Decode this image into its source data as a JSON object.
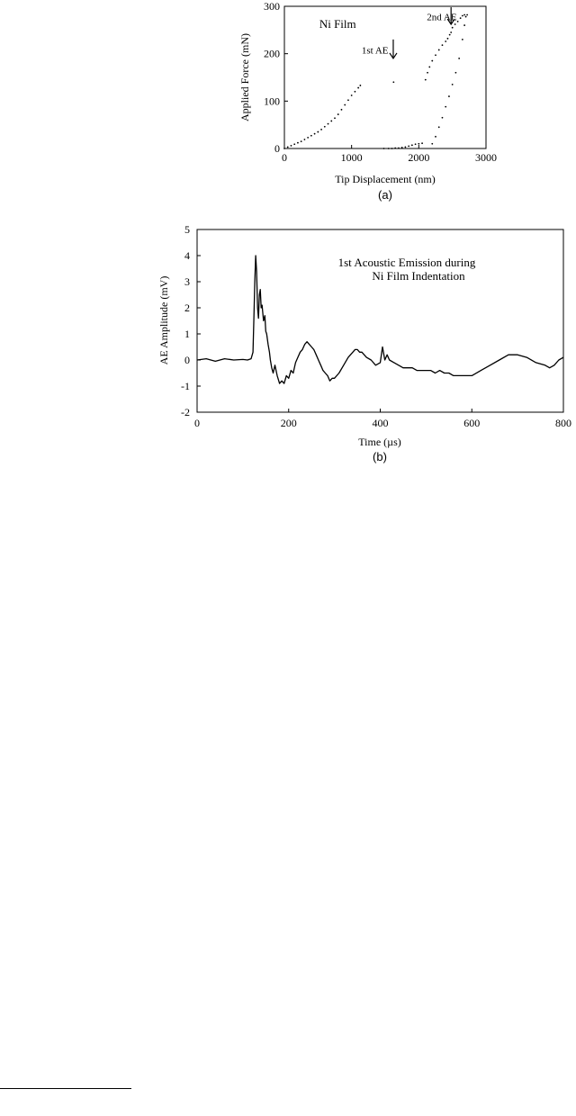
{
  "chart_data": [
    {
      "type": "scatter",
      "xlabel": "Tip Displacement (nm)",
      "ylabel": "Applied Force (mN)",
      "xlim": [
        0,
        3000
      ],
      "ylim": [
        0,
        300
      ],
      "xticks": [
        "0",
        "1000",
        "2000",
        "3000"
      ],
      "yticks": [
        "0",
        "100",
        "200",
        "300"
      ],
      "caption": "(a)",
      "grid": false,
      "annotations": [
        {
          "text": "Ni Film",
          "x": 520,
          "y": 262
        },
        {
          "text": "1st AE",
          "x": 1150,
          "y": 208,
          "arrow_x": 1620,
          "arrow_top": 230,
          "arrow_bottom": 190
        },
        {
          "text": "2nd AE",
          "x": 2120,
          "y": 278,
          "arrow_x": 2480,
          "arrow_top": 298,
          "arrow_bottom": 262
        }
      ],
      "series": [
        {
          "values": [
            [
              0,
              0
            ],
            [
              50,
              3
            ],
            [
              100,
              6
            ],
            [
              150,
              9
            ],
            [
              200,
              12
            ],
            [
              250,
              15
            ],
            [
              300,
              19
            ],
            [
              350,
              23
            ],
            [
              400,
              27
            ],
            [
              450,
              31
            ],
            [
              500,
              35
            ],
            [
              550,
              40
            ],
            [
              600,
              46
            ],
            [
              650,
              52
            ],
            [
              700,
              58
            ],
            [
              750,
              64
            ],
            [
              800,
              72
            ],
            [
              850,
              82
            ],
            [
              900,
              92
            ],
            [
              950,
              102
            ],
            [
              1000,
              112
            ],
            [
              1050,
              120
            ],
            [
              1100,
              128
            ],
            [
              1130,
              133
            ]
          ]
        },
        {
          "values": [
            [
              1625,
              140
            ]
          ]
        },
        {
          "values": [
            [
              1480,
              0
            ],
            [
              1550,
              0
            ],
            [
              1600,
              0
            ],
            [
              1650,
              1
            ],
            [
              1700,
              1
            ],
            [
              1750,
              2
            ],
            [
              1800,
              3
            ],
            [
              1850,
              5
            ],
            [
              1900,
              7
            ],
            [
              1950,
              9
            ],
            [
              2000,
              10
            ],
            [
              2050,
              11
            ]
          ]
        },
        {
          "values": [
            [
              2100,
              145
            ],
            [
              2130,
              160
            ],
            [
              2160,
              172
            ],
            [
              2200,
              185
            ],
            [
              2250,
              197
            ],
            [
              2300,
              208
            ],
            [
              2350,
              218
            ],
            [
              2400,
              226
            ],
            [
              2430,
              232
            ],
            [
              2460,
              240
            ],
            [
              2480,
              245
            ]
          ]
        },
        {
          "values": [
            [
              2500,
              255
            ],
            [
              2540,
              262
            ],
            [
              2580,
              268
            ],
            [
              2620,
              275
            ],
            [
              2650,
              280
            ],
            [
              2680,
              282
            ],
            [
              2720,
              282
            ]
          ]
        },
        {
          "values": [
            [
              2200,
              10
            ],
            [
              2250,
              25
            ],
            [
              2300,
              45
            ],
            [
              2350,
              65
            ],
            [
              2400,
              88
            ],
            [
              2450,
              110
            ],
            [
              2500,
              135
            ],
            [
              2550,
              160
            ],
            [
              2600,
              190
            ],
            [
              2650,
              230
            ],
            [
              2680,
              260
            ],
            [
              2700,
              278
            ]
          ]
        }
      ]
    },
    {
      "type": "line",
      "title": "1st Acoustic Emission during",
      "title_line2": "Ni Film Indentation",
      "xlabel": "Time (µs)",
      "ylabel": "AE Amplitude (mV)",
      "xlim": [
        0,
        800
      ],
      "ylim": [
        -2,
        5
      ],
      "xticks": [
        "0",
        "200",
        "400",
        "600",
        "800"
      ],
      "yticks": [
        "-2",
        "-1",
        "0",
        "1",
        "2",
        "3",
        "4",
        "5"
      ],
      "caption": "(b)",
      "grid": false,
      "series": [
        {
          "x": [
            0,
            20,
            40,
            60,
            80,
            100,
            110,
            118,
            122,
            124,
            126,
            128,
            130,
            132,
            134,
            136,
            138,
            140,
            142,
            145,
            148,
            150,
            152,
            155,
            158,
            160,
            163,
            166,
            170,
            175,
            180,
            185,
            190,
            195,
            200,
            205,
            210,
            215,
            220,
            225,
            230,
            235,
            240,
            245,
            250,
            255,
            260,
            265,
            270,
            275,
            280,
            285,
            290,
            295,
            300,
            310,
            320,
            330,
            340,
            345,
            350,
            355,
            360,
            370,
            380,
            390,
            400,
            405,
            410,
            415,
            420,
            430,
            440,
            450,
            460,
            470,
            480,
            490,
            500,
            510,
            520,
            530,
            540,
            550,
            560,
            570,
            580,
            590,
            600,
            620,
            640,
            660,
            680,
            700,
            720,
            740,
            760,
            770,
            780,
            790,
            800
          ],
          "y": [
            0,
            0.05,
            -0.05,
            0.05,
            0,
            0.02,
            0,
            0.05,
            0.3,
            1.6,
            3.0,
            4.0,
            3.4,
            2.0,
            1.6,
            2.5,
            2.7,
            2.0,
            2.1,
            1.5,
            1.7,
            1.1,
            1.0,
            0.6,
            0.3,
            0.0,
            -0.3,
            -0.5,
            -0.2,
            -0.6,
            -0.9,
            -0.8,
            -0.9,
            -0.6,
            -0.7,
            -0.4,
            -0.5,
            -0.1,
            0.1,
            0.3,
            0.4,
            0.6,
            0.7,
            0.6,
            0.5,
            0.4,
            0.2,
            0.0,
            -0.2,
            -0.4,
            -0.5,
            -0.6,
            -0.8,
            -0.7,
            -0.7,
            -0.5,
            -0.2,
            0.1,
            0.3,
            0.4,
            0.4,
            0.3,
            0.3,
            0.1,
            0.0,
            -0.2,
            -0.1,
            0.5,
            0.0,
            0.2,
            0.0,
            -0.1,
            -0.2,
            -0.3,
            -0.3,
            -0.3,
            -0.4,
            -0.4,
            -0.4,
            -0.4,
            -0.5,
            -0.4,
            -0.5,
            -0.5,
            -0.6,
            -0.6,
            -0.6,
            -0.6,
            -0.6,
            -0.4,
            -0.2,
            0.0,
            0.2,
            0.2,
            0.1,
            -0.1,
            -0.2,
            -0.3,
            -0.2,
            0.0,
            0.1
          ]
        }
      ]
    }
  ]
}
